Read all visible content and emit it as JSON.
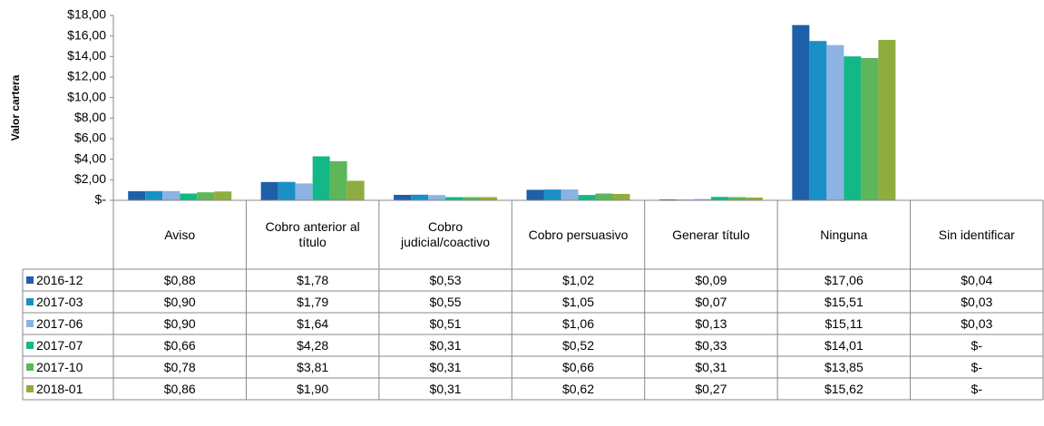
{
  "chart_data": {
    "type": "bar",
    "y_label": "Valor cartera",
    "categories": [
      "Aviso",
      "Cobro anterior al título",
      "Cobro judicial/coactivo",
      "Cobro persuasivo",
      "Generar título",
      "Ninguna",
      "Sin identificar"
    ],
    "series": [
      {
        "name": "2016-12",
        "color": "#1f5fa8",
        "values": [
          0.88,
          1.78,
          0.53,
          1.02,
          0.09,
          17.06,
          0.04
        ],
        "value_labels": [
          "$0,88",
          "$1,78",
          "$0,53",
          "$1,02",
          "$0,09",
          "$17,06",
          "$0,04"
        ]
      },
      {
        "name": "2017-03",
        "color": "#1a8fc6",
        "values": [
          0.9,
          1.79,
          0.55,
          1.05,
          0.07,
          15.51,
          0.03
        ],
        "value_labels": [
          "$0,90",
          "$1,79",
          "$0,55",
          "$1,05",
          "$0,07",
          "$15,51",
          "$0,03"
        ]
      },
      {
        "name": "2017-06",
        "color": "#8db3e2",
        "values": [
          0.9,
          1.64,
          0.51,
          1.06,
          0.13,
          15.11,
          0.03
        ],
        "value_labels": [
          "$0,90",
          "$1,64",
          "$0,51",
          "$1,06",
          "$0,13",
          "$15,11",
          "$0,03"
        ]
      },
      {
        "name": "2017-07",
        "color": "#13b886",
        "values": [
          0.66,
          4.28,
          0.31,
          0.52,
          0.33,
          14.01,
          0
        ],
        "value_labels": [
          "$0,66",
          "$4,28",
          "$0,31",
          "$0,52",
          "$0,33",
          "$14,01",
          "$-"
        ]
      },
      {
        "name": "2017-10",
        "color": "#5fb55a",
        "values": [
          0.78,
          3.81,
          0.31,
          0.66,
          0.31,
          13.85,
          0
        ],
        "value_labels": [
          "$0,78",
          "$3,81",
          "$0,31",
          "$0,66",
          "$0,31",
          "$13,85",
          "$-"
        ]
      },
      {
        "name": "2018-01",
        "color": "#8fad3f",
        "values": [
          0.86,
          1.9,
          0.31,
          0.62,
          0.27,
          15.62,
          0
        ],
        "value_labels": [
          "$0,86",
          "$1,90",
          "$0,31",
          "$0,62",
          "$0,27",
          "$15,62",
          "$-"
        ]
      }
    ],
    "ylim": [
      0,
      18
    ],
    "yticks": [
      {
        "value": 0,
        "label": "$-"
      },
      {
        "value": 2,
        "label": "$2,00"
      },
      {
        "value": 4,
        "label": "$4,00"
      },
      {
        "value": 6,
        "label": "$6,00"
      },
      {
        "value": 8,
        "label": "$8,00"
      },
      {
        "value": 10,
        "label": "$10,00"
      },
      {
        "value": 12,
        "label": "$12,00"
      },
      {
        "value": 14,
        "label": "$14,00"
      },
      {
        "value": 16,
        "label": "$16,00"
      },
      {
        "value": 18,
        "label": "$18,00"
      }
    ]
  }
}
